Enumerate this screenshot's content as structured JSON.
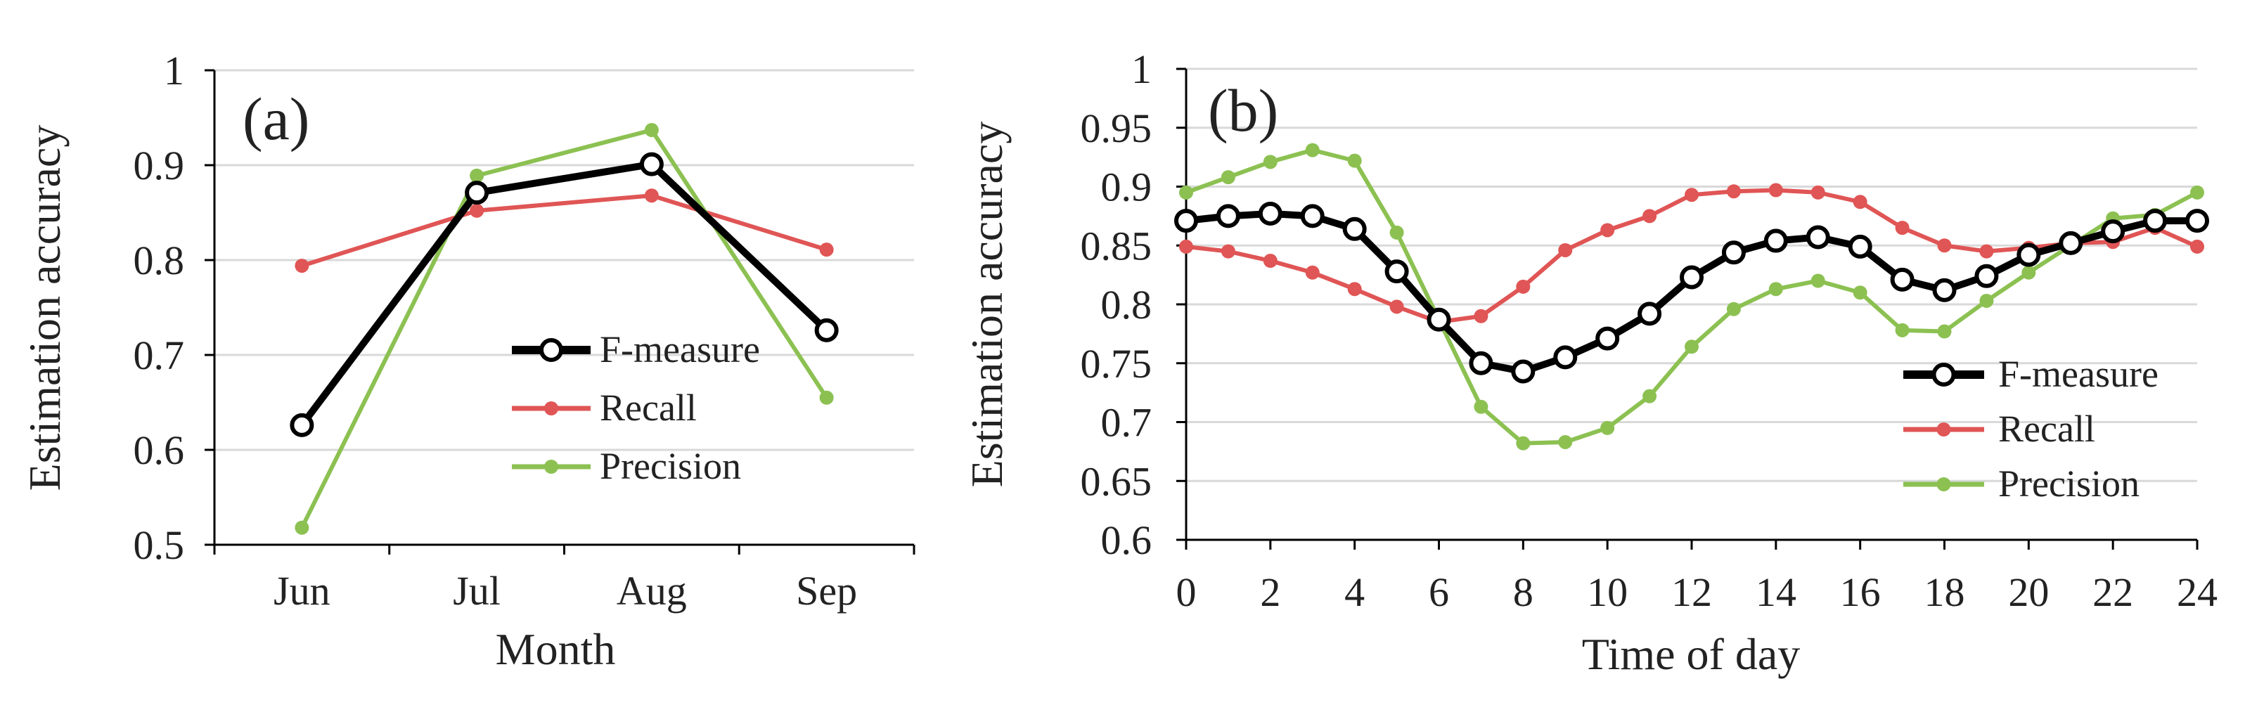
{
  "chart_data": [
    {
      "type": "line",
      "panel_label": "(a)",
      "xlabel": "Month",
      "ylabel": "Estimation  accuracy",
      "categories": [
        "Jun",
        "Jul",
        "Aug",
        "Sep"
      ],
      "ylim": [
        0.5,
        1
      ],
      "yticks": [
        0.5,
        0.6,
        0.7,
        0.8,
        0.9,
        1
      ],
      "ytick_labels": [
        "0.5",
        "0.6",
        "0.7",
        "0.8",
        "0.9",
        "1"
      ],
      "grid": true,
      "legend_position": "center-right",
      "series": [
        {
          "name": "F-measure",
          "color": "#000000",
          "marker": "open-circle",
          "values": [
            0.626,
            0.871,
            0.901,
            0.726
          ]
        },
        {
          "name": "Recall",
          "color": "#e05555",
          "marker": "dot",
          "values": [
            0.794,
            0.852,
            0.868,
            0.811
          ]
        },
        {
          "name": "Precision",
          "color": "#8cc152",
          "marker": "dot",
          "values": [
            0.518,
            0.889,
            0.937,
            0.655
          ]
        }
      ]
    },
    {
      "type": "line",
      "panel_label": "(b)",
      "xlabel": "Time of day",
      "ylabel": "Estimation  accuracy",
      "x": [
        0,
        1,
        2,
        3,
        4,
        5,
        6,
        7,
        8,
        9,
        10,
        11,
        12,
        13,
        14,
        15,
        16,
        17,
        18,
        19,
        20,
        21,
        22,
        23,
        24
      ],
      "xticks": [
        0,
        2,
        4,
        6,
        8,
        10,
        12,
        14,
        16,
        18,
        20,
        22,
        24
      ],
      "xtick_labels": [
        "0",
        "2",
        "4",
        "6",
        "8",
        "10",
        "12",
        "14",
        "16",
        "18",
        "20",
        "22",
        "24"
      ],
      "xlim": [
        0,
        24
      ],
      "ylim": [
        0.6,
        1
      ],
      "yticks": [
        0.6,
        0.65,
        0.7,
        0.75,
        0.8,
        0.85,
        0.9,
        0.95,
        1
      ],
      "ytick_labels": [
        "0.6",
        "0.65",
        "0.7",
        "0.75",
        "0.8",
        "0.85",
        "0.9",
        "0.95",
        "1"
      ],
      "grid": true,
      "legend_position": "lower-right",
      "series": [
        {
          "name": "F-measure",
          "color": "#000000",
          "marker": "open-circle",
          "values": [
            0.871,
            0.875,
            0.877,
            0.875,
            0.864,
            0.828,
            0.787,
            0.75,
            0.743,
            0.755,
            0.771,
            0.792,
            0.823,
            0.844,
            0.854,
            0.857,
            0.849,
            0.821,
            0.812,
            0.824,
            0.842,
            0.852,
            0.862,
            0.871,
            0.871
          ]
        },
        {
          "name": "Recall",
          "color": "#e05555",
          "marker": "dot",
          "values": [
            0.849,
            0.845,
            0.837,
            0.827,
            0.813,
            0.798,
            0.785,
            0.79,
            0.815,
            0.846,
            0.863,
            0.875,
            0.893,
            0.896,
            0.897,
            0.895,
            0.887,
            0.865,
            0.85,
            0.845,
            0.848,
            0.852,
            0.853,
            0.865,
            0.849
          ]
        },
        {
          "name": "Precision",
          "color": "#8cc152",
          "marker": "dot",
          "values": [
            0.895,
            0.908,
            0.921,
            0.931,
            0.922,
            0.861,
            0.787,
            0.713,
            0.682,
            0.683,
            0.695,
            0.722,
            0.764,
            0.796,
            0.813,
            0.82,
            0.81,
            0.778,
            0.777,
            0.803,
            0.827,
            0.85,
            0.873,
            0.876,
            0.895
          ]
        }
      ]
    }
  ]
}
